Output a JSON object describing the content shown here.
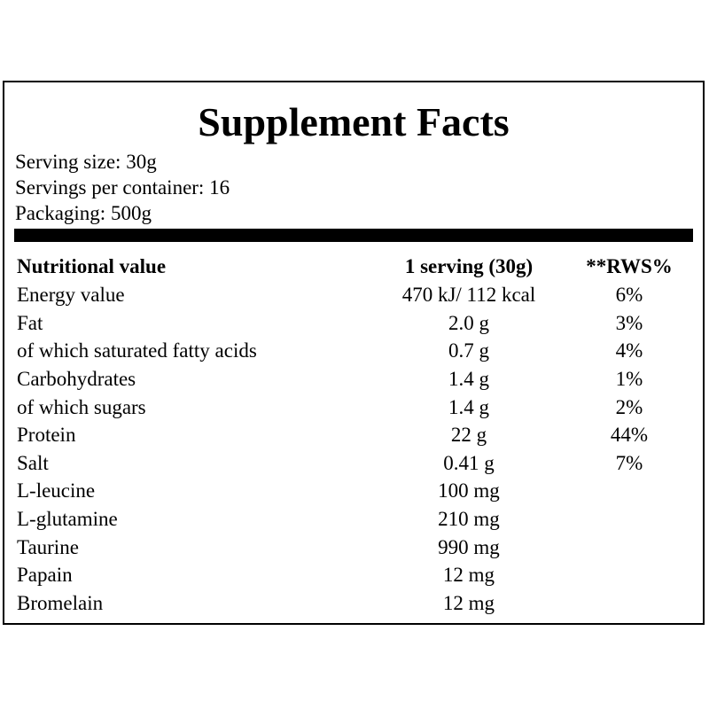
{
  "title": "Supplement Facts",
  "serving_info": [
    "Serving size: 30g",
    "Servings per container: 16",
    "Packaging: 500g"
  ],
  "table": {
    "headers": {
      "name": "Nutritional value",
      "serving": "1 serving (30g)",
      "rws": "**RWS%"
    },
    "rows": [
      {
        "name": "Energy value",
        "serving": "470 kJ/ 112 kcal",
        "rws": "6%"
      },
      {
        "name": "Fat",
        "serving": "2.0 g",
        "rws": "3%"
      },
      {
        "name": "of which saturated fatty acids",
        "serving": "0.7 g",
        "rws": "4%"
      },
      {
        "name": "Carbohydrates",
        "serving": "1.4 g",
        "rws": "1%"
      },
      {
        "name": "of which sugars",
        "serving": "1.4 g",
        "rws": "2%"
      },
      {
        "name": "Protein",
        "serving": "22 g",
        "rws": "44%"
      },
      {
        "name": "Salt",
        "serving": "0.41 g",
        "rws": "7%"
      },
      {
        "name": "L-leucine",
        "serving": "100 mg",
        "rws": ""
      },
      {
        "name": "L-glutamine",
        "serving": "210 mg",
        "rws": ""
      },
      {
        "name": "Taurine",
        "serving": "990 mg",
        "rws": ""
      },
      {
        "name": "Papain",
        "serving": "12 mg",
        "rws": ""
      },
      {
        "name": "Bromelain",
        "serving": "12 mg",
        "rws": ""
      }
    ]
  }
}
